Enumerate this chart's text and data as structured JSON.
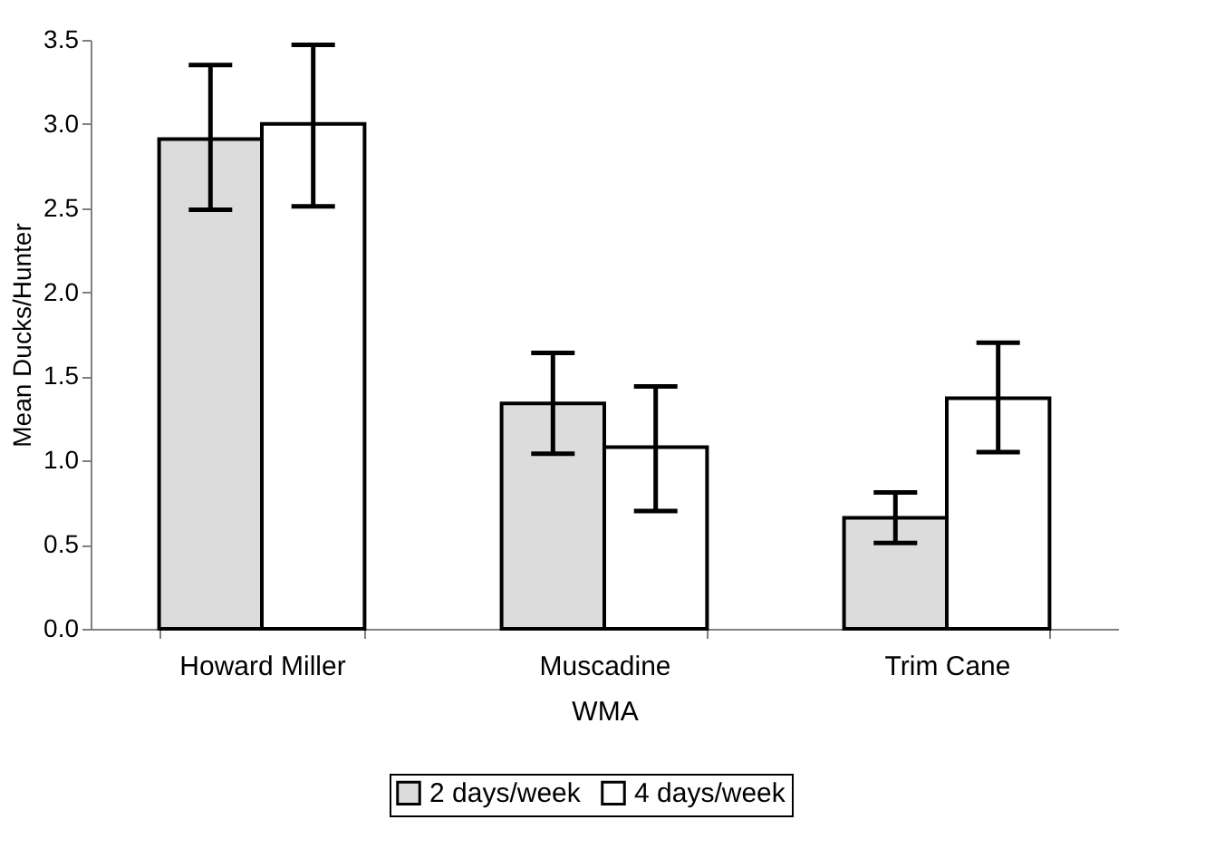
{
  "chart_data": {
    "type": "bar",
    "xlabel": "WMA",
    "ylabel": "Mean Ducks/Hunter",
    "categories": [
      "Howard Miller",
      "Muscadine",
      "Trim Cane"
    ],
    "series": [
      {
        "name": "2 days/week",
        "color": "#dcdcdc",
        "values": [
          2.91,
          1.34,
          0.66
        ],
        "errors": [
          [
            2.49,
            3.35
          ],
          [
            1.04,
            1.64
          ],
          [
            0.51,
            0.81
          ]
        ]
      },
      {
        "name": "4 days/week",
        "color": "#ffffff",
        "values": [
          3.0,
          1.08,
          1.37
        ],
        "errors": [
          [
            2.51,
            3.47
          ],
          [
            0.7,
            1.44
          ],
          [
            1.05,
            1.7
          ]
        ]
      }
    ],
    "ylim": [
      0,
      3.5
    ],
    "yticks": [
      {
        "value": 0,
        "label": "0.0"
      },
      {
        "value": 0.5,
        "label": "0.5"
      },
      {
        "value": 1,
        "label": "1.0"
      },
      {
        "value": 1.5,
        "label": "1.5"
      },
      {
        "value": 2,
        "label": "2.0"
      },
      {
        "value": 2.5,
        "label": "2.5"
      },
      {
        "value": 3,
        "label": "3.0"
      },
      {
        "value": 3.5,
        "label": "3.5"
      }
    ],
    "grid": false,
    "legend": "bottom"
  }
}
